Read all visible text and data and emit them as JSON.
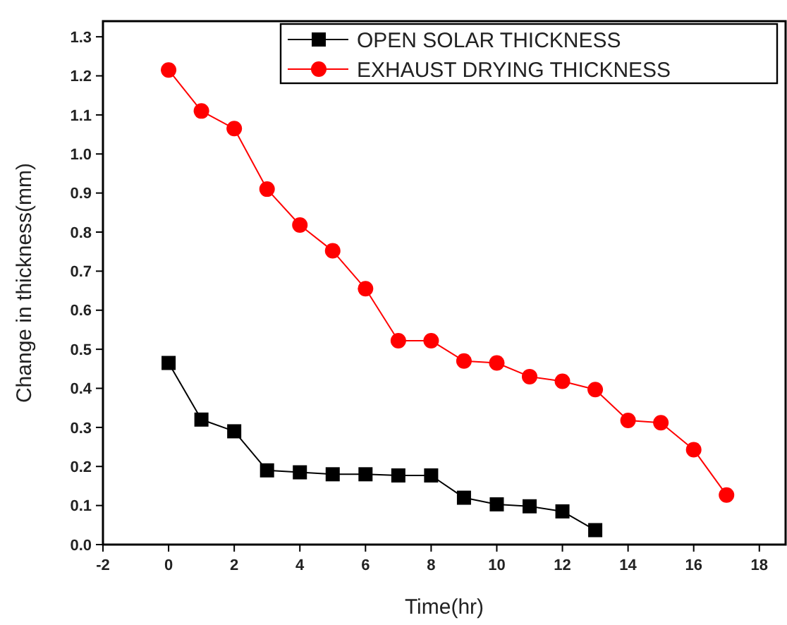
{
  "chart_data": {
    "type": "line",
    "xlabel": "Time(hr)",
    "ylabel": "Change in thickness(mm)",
    "xlim": [
      -2,
      18.8
    ],
    "ylim": [
      0,
      1.34
    ],
    "xticks": [
      -2,
      0,
      2,
      4,
      6,
      8,
      10,
      12,
      14,
      16,
      18
    ],
    "yticks": [
      {
        "value": 0,
        "label": "0.0"
      },
      {
        "value": 0.1,
        "label": "0.1"
      },
      {
        "value": 0.2,
        "label": "0.2"
      },
      {
        "value": 0.3,
        "label": "0.3"
      },
      {
        "value": 0.4,
        "label": "0.4"
      },
      {
        "value": 0.5,
        "label": "0.5"
      },
      {
        "value": 0.6,
        "label": "0.6"
      },
      {
        "value": 0.7,
        "label": "0.7"
      },
      {
        "value": 0.8,
        "label": "0.8"
      },
      {
        "value": 0.9,
        "label": "0.9"
      },
      {
        "value": 1.0,
        "label": "1.0"
      },
      {
        "value": 1.1,
        "label": "1.1"
      },
      {
        "value": 1.2,
        "label": "1.2"
      },
      {
        "value": 1.3,
        "label": "1.3"
      }
    ],
    "legend": "top right",
    "grid": false,
    "series": [
      {
        "name": "OPEN SOLAR THICKNESS",
        "color": "#000000",
        "marker": "square",
        "x": [
          0,
          1,
          2,
          3,
          4,
          5,
          6,
          7,
          8,
          9,
          10,
          11,
          12,
          13
        ],
        "values": [
          0.465,
          0.32,
          0.29,
          0.19,
          0.185,
          0.18,
          0.18,
          0.177,
          0.177,
          0.12,
          0.103,
          0.098,
          0.085,
          0.037
        ]
      },
      {
        "name": "EXHAUST DRYING THICKNESS",
        "color": "#ff0000",
        "marker": "circle",
        "x": [
          0,
          1,
          2,
          3,
          4,
          5,
          6,
          7,
          8,
          9,
          10,
          11,
          12,
          13,
          14,
          15,
          16,
          17
        ],
        "values": [
          1.215,
          1.11,
          1.065,
          0.91,
          0.818,
          0.752,
          0.655,
          0.522,
          0.522,
          0.47,
          0.465,
          0.43,
          0.418,
          0.397,
          0.318,
          0.312,
          0.243,
          0.127
        ]
      }
    ]
  }
}
